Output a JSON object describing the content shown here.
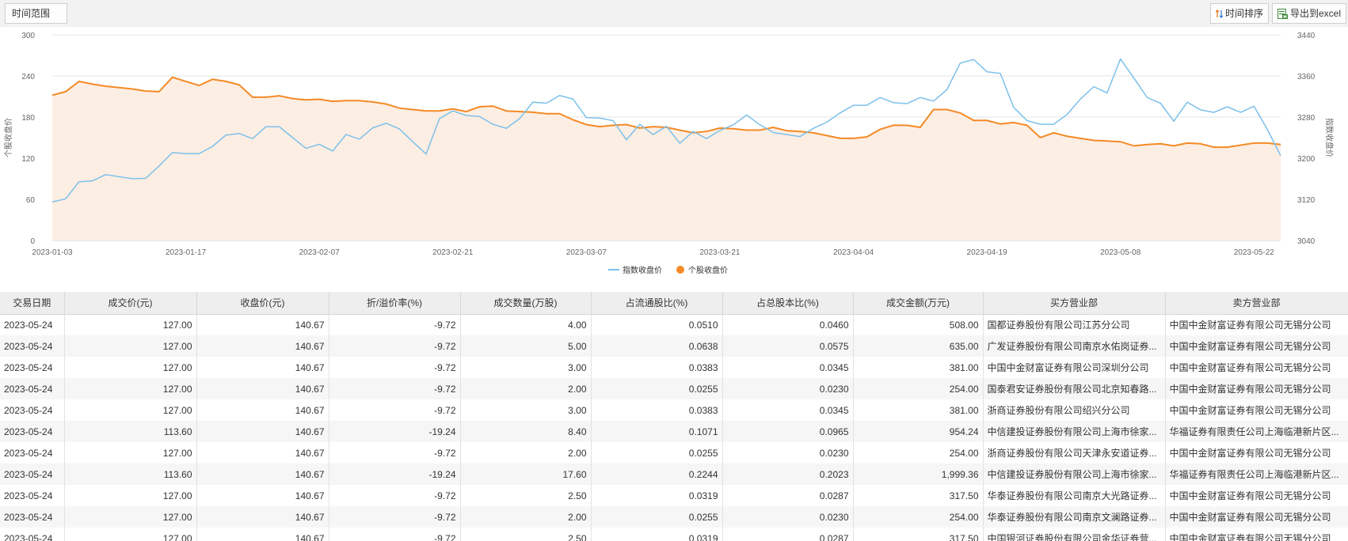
{
  "toolbar": {
    "range_label": "时间范围",
    "sort_label": "时间排序",
    "export_label": "导出到excel"
  },
  "colors": {
    "index_line": "#7cc0ea",
    "stock_line": "#f48a26",
    "stock_fill": "#fdeee3",
    "grid": "#e6e6e6"
  },
  "chart_data": {
    "type": "line",
    "title": "",
    "left_axis": {
      "label": "个股收盘价",
      "min": 0,
      "max": 300,
      "ticks": [
        0,
        60,
        120,
        180,
        240,
        300
      ]
    },
    "right_axis": {
      "label": "指数收盘价",
      "min": 3040,
      "max": 3440,
      "ticks": [
        3040,
        3120,
        3200,
        3280,
        3360,
        3440
      ]
    },
    "x_tick_labels": [
      "2023-01-03",
      "2023-01-17",
      "2023-02-07",
      "2023-02-21",
      "2023-03-07",
      "2023-03-21",
      "2023-04-04",
      "2023-04-19",
      "2023-05-08",
      "2023-05-22"
    ],
    "x_tick_indices": [
      0,
      10,
      20,
      30,
      40,
      50,
      60,
      70,
      80,
      90
    ],
    "legend_position": "bottom-center",
    "grid": true,
    "series": [
      {
        "name": "指数收盘价",
        "axis": "right",
        "values": [
          3115,
          3121,
          3154,
          3156,
          3168,
          3164,
          3160,
          3161,
          3185,
          3211,
          3209,
          3209,
          3223,
          3245,
          3248,
          3238,
          3261,
          3261,
          3240,
          3219,
          3227,
          3214,
          3246,
          3237,
          3259,
          3268,
          3257,
          3232,
          3208,
          3277,
          3292,
          3283,
          3281,
          3266,
          3258,
          3277,
          3309,
          3307,
          3322,
          3315,
          3279,
          3278,
          3273,
          3236,
          3266,
          3246,
          3262,
          3229,
          3252,
          3238,
          3254,
          3265,
          3284,
          3265,
          3250,
          3246,
          3242,
          3258,
          3270,
          3288,
          3303,
          3303,
          3318,
          3308,
          3306,
          3318,
          3311,
          3333,
          3385,
          3392,
          3368,
          3365,
          3299,
          3273,
          3266,
          3266,
          3285,
          3315,
          3339,
          3327,
          3393,
          3356,
          3318,
          3307,
          3272,
          3309,
          3294,
          3289,
          3300,
          3289,
          3301,
          3256,
          3205
        ]
      },
      {
        "name": "个股收盘价",
        "axis": "left",
        "values": [
          212,
          217,
          232,
          228,
          225,
          223,
          221,
          218,
          217,
          238,
          232,
          226,
          235,
          232,
          227,
          209,
          209,
          211,
          207,
          205,
          206,
          203,
          204,
          204,
          202,
          199,
          193,
          191,
          189,
          189,
          192,
          188,
          195,
          196,
          189,
          188,
          187,
          185,
          185,
          176,
          169,
          166,
          168,
          169,
          164,
          166,
          165,
          161,
          157,
          159,
          164,
          163,
          161,
          161,
          165,
          160,
          159,
          157,
          153,
          149,
          149,
          151,
          162,
          168,
          168,
          165,
          191,
          191,
          186,
          175,
          175,
          170,
          172,
          168,
          150,
          157,
          152,
          149,
          146,
          145,
          144,
          138,
          140,
          141,
          138,
          142,
          141,
          136,
          136,
          139,
          142,
          142,
          140
        ]
      }
    ]
  },
  "table": {
    "columns": [
      "交易日期",
      "成交价(元)",
      "收盘价(元)",
      "折/溢价率(%)",
      "成交数量(万股)",
      "占流通股比(%)",
      "占总股本比(%)",
      "成交金额(万元)",
      "买方营业部",
      "卖方营业部"
    ],
    "rows": [
      [
        "2023-05-24",
        "127.00",
        "140.67",
        "-9.72",
        "4.00",
        "0.0510",
        "0.0460",
        "508.00",
        "国都证券股份有限公司江苏分公司",
        "中国中金财富证券有限公司无锡分公司"
      ],
      [
        "2023-05-24",
        "127.00",
        "140.67",
        "-9.72",
        "5.00",
        "0.0638",
        "0.0575",
        "635.00",
        "广发证券股份有限公司南京水佑岗证券...",
        "中国中金财富证券有限公司无锡分公司"
      ],
      [
        "2023-05-24",
        "127.00",
        "140.67",
        "-9.72",
        "3.00",
        "0.0383",
        "0.0345",
        "381.00",
        "中国中金财富证券有限公司深圳分公司",
        "中国中金财富证券有限公司无锡分公司"
      ],
      [
        "2023-05-24",
        "127.00",
        "140.67",
        "-9.72",
        "2.00",
        "0.0255",
        "0.0230",
        "254.00",
        "国泰君安证券股份有限公司北京知春路...",
        "中国中金财富证券有限公司无锡分公司"
      ],
      [
        "2023-05-24",
        "127.00",
        "140.67",
        "-9.72",
        "3.00",
        "0.0383",
        "0.0345",
        "381.00",
        "浙商证券股份有限公司绍兴分公司",
        "中国中金财富证券有限公司无锡分公司"
      ],
      [
        "2023-05-24",
        "113.60",
        "140.67",
        "-19.24",
        "8.40",
        "0.1071",
        "0.0965",
        "954.24",
        "中信建投证券股份有限公司上海市徐家...",
        "华福证券有限责任公司上海临港新片区..."
      ],
      [
        "2023-05-24",
        "127.00",
        "140.67",
        "-9.72",
        "2.00",
        "0.0255",
        "0.0230",
        "254.00",
        "浙商证券股份有限公司天津永安道证券...",
        "中国中金财富证券有限公司无锡分公司"
      ],
      [
        "2023-05-24",
        "113.60",
        "140.67",
        "-19.24",
        "17.60",
        "0.2244",
        "0.2023",
        "1,999.36",
        "中信建投证券股份有限公司上海市徐家...",
        "华福证券有限责任公司上海临港新片区..."
      ],
      [
        "2023-05-24",
        "127.00",
        "140.67",
        "-9.72",
        "2.50",
        "0.0319",
        "0.0287",
        "317.50",
        "华泰证券股份有限公司南京大光路证券...",
        "中国中金财富证券有限公司无锡分公司"
      ],
      [
        "2023-05-24",
        "127.00",
        "140.67",
        "-9.72",
        "2.00",
        "0.0255",
        "0.0230",
        "254.00",
        "华泰证券股份有限公司南京文澜路证券...",
        "中国中金财富证券有限公司无锡分公司"
      ],
      [
        "2023-05-24",
        "127.00",
        "140.67",
        "-9.72",
        "2.50",
        "0.0319",
        "0.0287",
        "317.50",
        "中国银河证券股份有限公司金华证券营...",
        "中国中金财富证券有限公司无锡分公司"
      ]
    ]
  }
}
